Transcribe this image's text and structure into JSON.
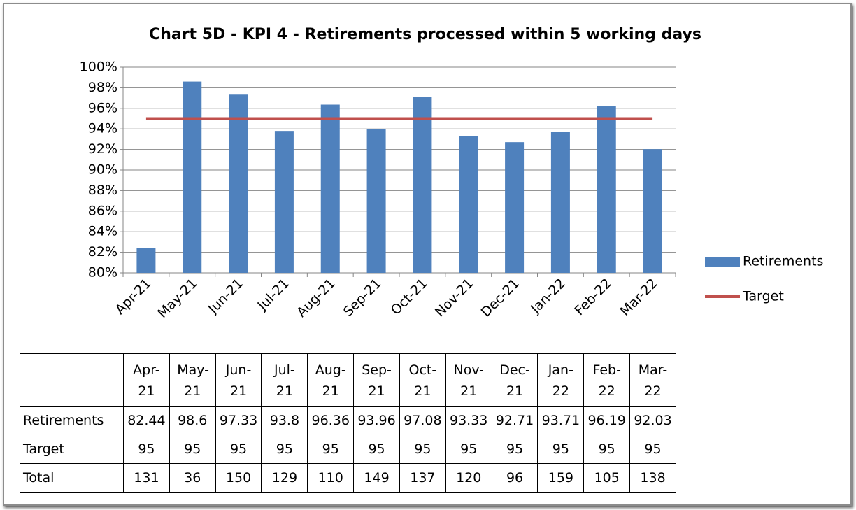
{
  "chart_data": {
    "type": "bar",
    "title": "Chart 5D - KPI 4 - Retirements processed within 5 working days",
    "categories": [
      "Apr-21",
      "May-21",
      "Jun-21",
      "Jul-21",
      "Aug-21",
      "Sep-21",
      "Oct-21",
      "Nov-21",
      "Dec-21",
      "Jan-22",
      "Feb-22",
      "Mar-22"
    ],
    "series": [
      {
        "name": "Retirements",
        "type": "bar",
        "color": "#4f81bd",
        "values": [
          82.44,
          98.6,
          97.33,
          93.8,
          96.36,
          93.96,
          97.08,
          93.33,
          92.71,
          93.71,
          96.19,
          92.03
        ]
      },
      {
        "name": "Target",
        "type": "line",
        "color": "#c0504d",
        "values": [
          95,
          95,
          95,
          95,
          95,
          95,
          95,
          95,
          95,
          95,
          95,
          95
        ]
      }
    ],
    "table": {
      "rows": [
        {
          "name": "Total",
          "values": [
            131,
            36,
            150,
            129,
            110,
            149,
            137,
            120,
            96,
            159,
            105,
            138
          ]
        }
      ]
    },
    "ylim": [
      80,
      100
    ],
    "yticks": [
      {
        "value": 80,
        "label": "80%"
      },
      {
        "value": 82,
        "label": "82%"
      },
      {
        "value": 84,
        "label": "84%"
      },
      {
        "value": 86,
        "label": "86%"
      },
      {
        "value": 88,
        "label": "88%"
      },
      {
        "value": 90,
        "label": "90%"
      },
      {
        "value": 92,
        "label": "92%"
      },
      {
        "value": 94,
        "label": "94%"
      },
      {
        "value": 96,
        "label": "96%"
      },
      {
        "value": 98,
        "label": "98%"
      },
      {
        "value": 100,
        "label": "100%"
      }
    ],
    "grid": true,
    "legend": "right"
  }
}
